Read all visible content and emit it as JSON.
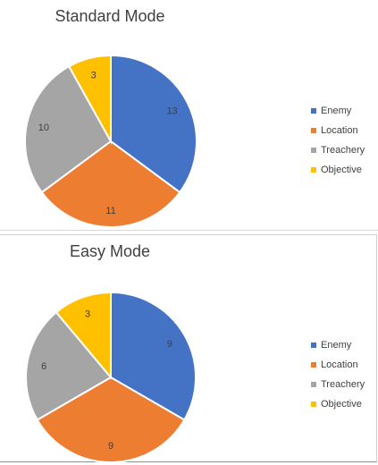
{
  "chart_data": [
    {
      "type": "pie",
      "title": "Standard Mode",
      "categories": [
        "Enemy",
        "Location",
        "Treachery",
        "Objective"
      ],
      "values": [
        13,
        11,
        10,
        3
      ],
      "colors": [
        "#4472C4",
        "#ED7D31",
        "#A5A5A5",
        "#FFC000"
      ],
      "legend": "right"
    },
    {
      "type": "pie",
      "title": "Easy Mode",
      "categories": [
        "Enemy",
        "Location",
        "Treachery",
        "Objective"
      ],
      "values": [
        9,
        9,
        6,
        3
      ],
      "colors": [
        "#4472C4",
        "#ED7D31",
        "#A5A5A5",
        "#FFC000"
      ],
      "legend": "right"
    }
  ]
}
